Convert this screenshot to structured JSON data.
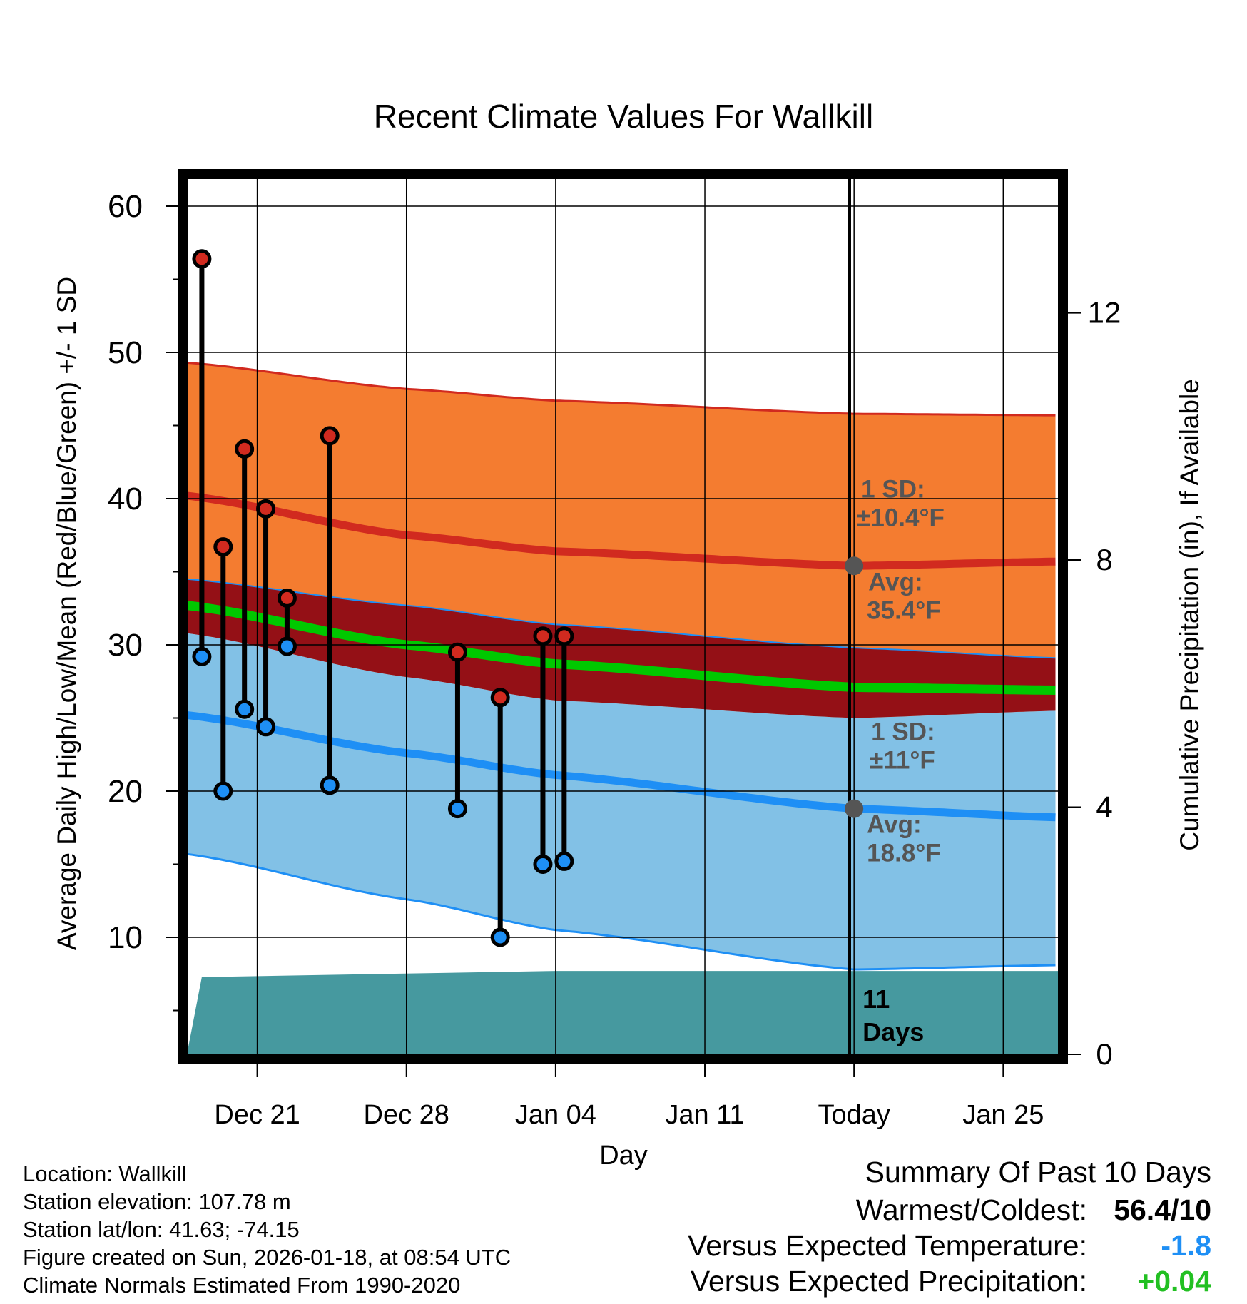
{
  "chart_data": {
    "type": "line",
    "title": "Recent Climate Values For Wallkill",
    "xlabel": "Day",
    "ylabel": "Average Daily High/Low/Mean (Red/Blue/Green) +/- 1 SD",
    "y2label": "Cumulative Precipitation (in), If Available",
    "x_tick_labels": [
      "Dec 21",
      "Dec 28",
      "Jan 04",
      "Jan 11",
      "Today",
      "Jan 25"
    ],
    "x_tick_days": [
      2,
      9,
      16,
      23,
      30,
      37
    ],
    "x_range_days": [
      -1.3,
      39.6
    ],
    "ylim": [
      2,
      62
    ],
    "y_ticks": [
      10,
      20,
      30,
      40,
      50,
      60
    ],
    "y2lim": [
      0,
      14.2
    ],
    "y2_ticks": [
      0,
      4,
      8,
      12
    ],
    "today_day": 30,
    "expected_high": {
      "days": [
        -1.3,
        9,
        16,
        30,
        39.6
      ],
      "values": [
        40.2,
        37.5,
        36.4,
        35.4,
        35.7
      ]
    },
    "expected_high_sd_upper": {
      "days": [
        -1.3,
        9,
        16,
        30,
        39.6
      ],
      "values": [
        49.3,
        47.5,
        46.7,
        45.8,
        45.7
      ]
    },
    "expected_high_sd_lower": {
      "days": [
        -1.3,
        9,
        16,
        30,
        39.6
      ],
      "values": [
        34.5,
        32.7,
        31.4,
        29.8,
        29.1
      ]
    },
    "expected_low": {
      "days": [
        -1.3,
        9,
        16,
        30,
        39.6
      ],
      "values": [
        25.2,
        22.6,
        21.1,
        18.8,
        18.2
      ]
    },
    "expected_low_sd_upper": {
      "days": [
        -1.3,
        9,
        16,
        30,
        39.6
      ],
      "values": [
        30.8,
        27.8,
        26.2,
        25.0,
        25.5
      ]
    },
    "expected_low_sd_lower": {
      "days": [
        -1.3,
        9,
        16,
        30,
        39.6
      ],
      "values": [
        15.7,
        12.6,
        10.5,
        7.8,
        8.1
      ]
    },
    "expected_mean": {
      "days": [
        -1.3,
        9,
        16,
        30,
        39.6
      ],
      "values": [
        32.7,
        30.0,
        28.7,
        27.1,
        26.9
      ]
    },
    "observed": [
      {
        "day": -0.6,
        "high": 56.4,
        "low": 29.2
      },
      {
        "day": 0.4,
        "high": 36.7,
        "low": 20.0
      },
      {
        "day": 1.4,
        "high": 43.4,
        "low": 25.6
      },
      {
        "day": 2.4,
        "high": 39.3,
        "low": 24.4
      },
      {
        "day": 3.4,
        "high": 33.2,
        "low": 29.9
      },
      {
        "day": 5.4,
        "high": 44.3,
        "low": 20.4
      },
      {
        "day": 11.4,
        "high": 29.5,
        "low": 18.8
      },
      {
        "day": 13.4,
        "high": 26.4,
        "low": 10.0
      },
      {
        "day": 15.4,
        "high": 30.6,
        "low": 15.0
      },
      {
        "day": 16.4,
        "high": 30.6,
        "low": 15.2
      }
    ],
    "precipitation_cumulative": {
      "days": [
        -1.3,
        -0.6,
        16,
        39.6
      ],
      "values": [
        0.0,
        1.25,
        1.35,
        1.35
      ]
    },
    "high_annotation": {
      "sd_label": "1 SD:",
      "sd_value": "±10.4°F",
      "avg_label": "Avg:",
      "avg_value": "35.4°F",
      "avg": 35.4
    },
    "low_annotation": {
      "sd_label": "1 SD:",
      "sd_value": "±11°F",
      "avg_label": "Avg:",
      "avg_value": "18.8°F",
      "avg": 18.8
    },
    "days_label_count": "11",
    "days_label_word": "Days",
    "colors": {
      "high_sd_band": "#f47c30",
      "high_line": "#d12a1f",
      "overlap_band": "#941016",
      "mean_line": "#00c800",
      "low_sd_band": "#82c1e6",
      "low_line": "#1e8ff5",
      "low_edge": "#1e8ff5",
      "precip_area": "#46999f",
      "high_marker": "#d12a1f",
      "low_marker": "#1e8ff5",
      "avg_marker": "#555555"
    }
  },
  "info": {
    "location": "Location: Wallkill",
    "elevation": "Station elevation: 107.78 m",
    "latlon": "Station lat/lon: 41.63; -74.15",
    "created": "Figure created on Sun, 2026-01-18, at 08:54 UTC",
    "normals": "Climate Normals Estimated From 1990-2020"
  },
  "summary": {
    "title": "Summary Of Past 10 Days",
    "warm_cold_label": "Warmest/Coldest:",
    "warm_cold_value": "56.4/10",
    "temp_label": "Versus Expected Temperature:",
    "temp_value": "-1.8",
    "temp_color": "#1e8ff5",
    "precip_label": "Versus Expected Precipitation:",
    "precip_value": "+0.04",
    "precip_color": "#22c022"
  }
}
